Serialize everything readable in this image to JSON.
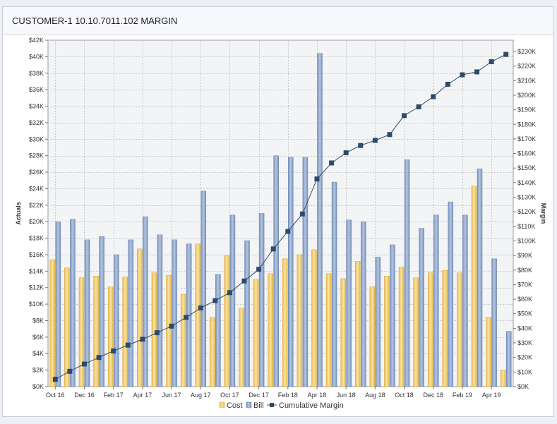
{
  "header": {
    "title": "CUSTOMER-1 10.10.7011.102 MARGIN"
  },
  "chart_data": {
    "type": "bar+line",
    "categories": [
      "Oct 16",
      "Nov 16",
      "Dec 16",
      "Jan 17",
      "Feb 17",
      "Mar 17",
      "Apr 17",
      "May 17",
      "Jun 17",
      "Jul 17",
      "Aug 17",
      "Sep 17",
      "Oct 17",
      "Nov 17",
      "Dec 17",
      "Jan 18",
      "Feb 18",
      "Mar 18",
      "Apr 18",
      "May 18",
      "Jun 18",
      "Jul 18",
      "Aug 18",
      "Sep 18",
      "Oct 18",
      "Nov 18",
      "Dec 18",
      "Jan 19",
      "Feb 19",
      "Mar 19",
      "Apr 19",
      "May 19"
    ],
    "x_tick_labels": [
      "Oct 16",
      "Dec 16",
      "Feb 17",
      "Apr 17",
      "Jun 17",
      "Aug 17",
      "Oct 17",
      "Dec 17",
      "Feb 18",
      "Apr 18",
      "Jun 18",
      "Aug 18",
      "Oct 18",
      "Dec 18",
      "Feb 19",
      "Apr 19"
    ],
    "series": [
      {
        "name": "Cost",
        "axis": "left",
        "type": "bar",
        "values": [
          15400,
          14400,
          13200,
          13400,
          12100,
          13300,
          16700,
          13800,
          13500,
          11200,
          17300,
          8400,
          15900,
          9500,
          13000,
          13700,
          15500,
          16000,
          16600,
          13700,
          13100,
          15200,
          12100,
          13400,
          14500,
          13200,
          13800,
          14100,
          13800,
          24300,
          8400,
          2000
        ]
      },
      {
        "name": "Bill",
        "axis": "left",
        "type": "bar",
        "values": [
          20000,
          20300,
          17800,
          18200,
          16000,
          17800,
          20600,
          18400,
          17800,
          17300,
          23700,
          13600,
          20800,
          17700,
          21000,
          28000,
          27800,
          27800,
          40400,
          24800,
          20200,
          20000,
          15700,
          17200,
          27500,
          19200,
          20800,
          22400,
          20800,
          26400,
          15500,
          6700
        ]
      },
      {
        "name": "Cumulative Margin",
        "axis": "right",
        "type": "line",
        "values": [
          5000,
          10500,
          15500,
          20000,
          24500,
          28500,
          32500,
          37000,
          41500,
          47500,
          54000,
          59000,
          64500,
          72500,
          80500,
          94500,
          106500,
          118500,
          142500,
          153500,
          160500,
          165500,
          169000,
          173000,
          186000,
          192000,
          199000,
          207500,
          214000,
          216000,
          223000,
          228000
        ]
      }
    ],
    "left_axis": {
      "label": "Actuals",
      "min": 0,
      "max": 42000,
      "step": 2000,
      "tick_labels": [
        "$0K",
        "$2K",
        "$4K",
        "$6K",
        "$8K",
        "$10K",
        "$12K",
        "$14K",
        "$16K",
        "$18K",
        "$20K",
        "$22K",
        "$24K",
        "$26K",
        "$28K",
        "$30K",
        "$32K",
        "$34K",
        "$36K",
        "$38K",
        "$40K",
        "$42K"
      ]
    },
    "right_axis": {
      "label": "Margin",
      "min": 0,
      "max": 230000,
      "step": 10000,
      "tick_labels": [
        "$0K",
        "$10K",
        "$20K",
        "$30K",
        "$40K",
        "$50K",
        "$60K",
        "$70K",
        "$80K",
        "$90K",
        "$100K",
        "$110K",
        "$120K",
        "$130K",
        "$140K",
        "$150K",
        "$160K",
        "$170K",
        "$180K",
        "$190K",
        "$200K",
        "$210K",
        "$220K",
        "$230K"
      ]
    },
    "grid": true,
    "legend": "bottom-center",
    "colors": {
      "cost": "#f1cc6b",
      "bill": "#8ea7cc",
      "line": "#2f4a6a",
      "plot_bg": "#f3f4f6"
    }
  }
}
